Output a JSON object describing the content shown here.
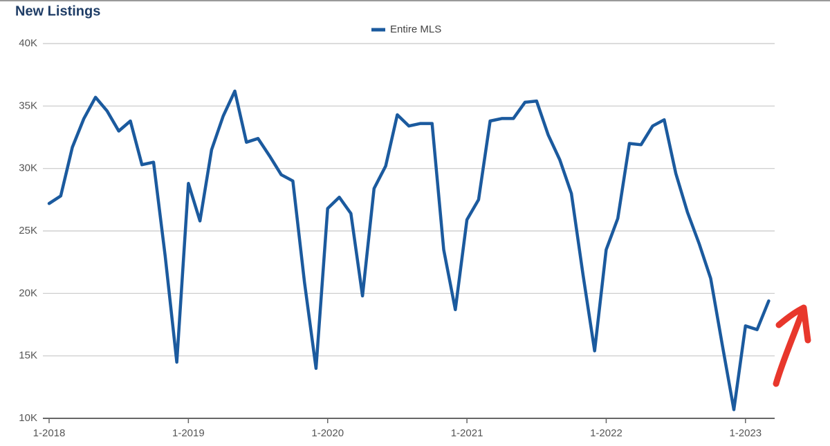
{
  "chart_data": {
    "type": "line",
    "title": "New Listings",
    "categories": [
      "1-2018",
      null,
      null,
      null,
      null,
      null,
      null,
      null,
      null,
      null,
      null,
      null,
      "1-2019",
      null,
      null,
      null,
      null,
      null,
      null,
      null,
      null,
      null,
      null,
      null,
      "1-2020",
      null,
      null,
      null,
      null,
      null,
      null,
      null,
      null,
      null,
      null,
      null,
      "1-2021",
      null,
      null,
      null,
      null,
      null,
      null,
      null,
      null,
      null,
      null,
      null,
      "1-2022",
      null,
      null,
      null,
      null,
      null,
      null,
      null,
      null,
      null,
      null,
      null,
      "1-2023",
      null,
      null
    ],
    "series": [
      {
        "name": "Entire MLS",
        "color": "#1b5a9e",
        "values": [
          27200,
          27800,
          31700,
          34000,
          35700,
          34600,
          33000,
          33800,
          30300,
          30500,
          23000,
          14500,
          28800,
          25800,
          31500,
          34200,
          36200,
          32100,
          32400,
          31000,
          29500,
          29000,
          20900,
          14000,
          26800,
          27700,
          26400,
          19800,
          28400,
          30200,
          34300,
          33400,
          33600,
          33600,
          23500,
          18700,
          25900,
          27500,
          33800,
          34000,
          34000,
          35300,
          35400,
          32700,
          30700,
          28000,
          21500,
          15400,
          23500,
          26000,
          32000,
          31900,
          33400,
          33900,
          29600,
          26500,
          24000,
          21200,
          15900,
          10700,
          17400,
          17100,
          19400
        ]
      }
    ],
    "ylim": [
      10000,
      40000
    ],
    "yticks": [
      {
        "value": 10000,
        "label": "10K"
      },
      {
        "value": 15000,
        "label": "15K"
      },
      {
        "value": 20000,
        "label": "20K"
      },
      {
        "value": 25000,
        "label": "25K"
      },
      {
        "value": 30000,
        "label": "30K"
      },
      {
        "value": 35000,
        "label": "35K"
      },
      {
        "value": 40000,
        "label": "40K"
      }
    ],
    "grid": true
  }
}
